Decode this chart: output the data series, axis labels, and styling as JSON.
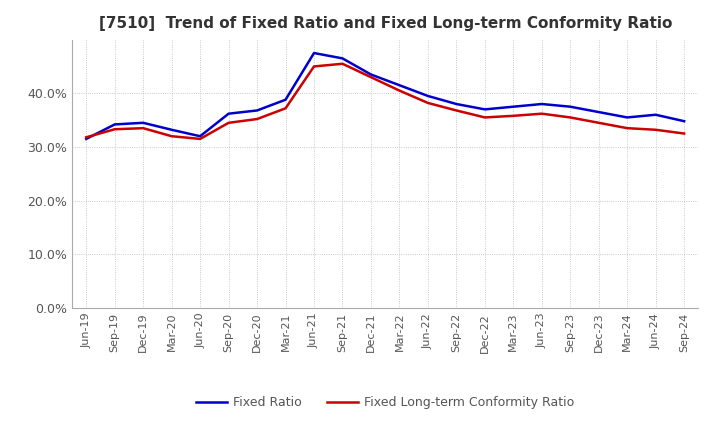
{
  "title": "[7510]  Trend of Fixed Ratio and Fixed Long-term Conformity Ratio",
  "x_labels": [
    "Jun-19",
    "Sep-19",
    "Dec-19",
    "Mar-20",
    "Jun-20",
    "Sep-20",
    "Dec-20",
    "Mar-21",
    "Jun-21",
    "Sep-21",
    "Dec-21",
    "Mar-22",
    "Jun-22",
    "Sep-22",
    "Dec-22",
    "Mar-23",
    "Jun-23",
    "Sep-23",
    "Dec-23",
    "Mar-24",
    "Jun-24",
    "Sep-24"
  ],
  "fixed_ratio": [
    31.5,
    34.2,
    34.5,
    33.2,
    32.0,
    36.2,
    36.8,
    38.8,
    47.5,
    46.5,
    43.5,
    41.5,
    39.5,
    38.0,
    37.0,
    37.5,
    38.0,
    37.5,
    36.5,
    35.5,
    36.0,
    34.8
  ],
  "fixed_lt_ratio": [
    31.8,
    33.3,
    33.5,
    32.0,
    31.5,
    34.5,
    35.2,
    37.2,
    45.0,
    45.5,
    43.0,
    40.5,
    38.2,
    36.8,
    35.5,
    35.8,
    36.2,
    35.5,
    34.5,
    33.5,
    33.2,
    32.5
  ],
  "line_color_fixed": "#0000cc",
  "line_color_lt": "#cc0000",
  "ylim": [
    0,
    50
  ],
  "yticks": [
    0.0,
    10.0,
    20.0,
    30.0,
    40.0
  ],
  "background_color": "#ffffff",
  "grid_color": "#bbbbbb",
  "legend_fixed": "Fixed Ratio",
  "legend_lt": "Fixed Long-term Conformity Ratio",
  "title_fontsize": 11,
  "tick_fontsize": 8,
  "ytick_fontsize": 9
}
